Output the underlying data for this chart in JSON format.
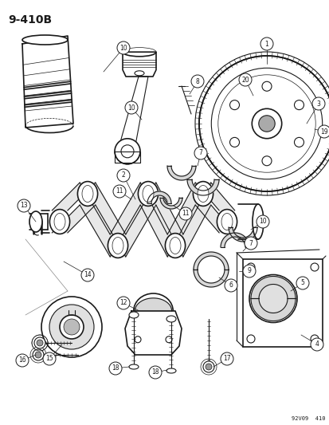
{
  "title": "9–410B",
  "bg_color": "#ffffff",
  "line_color": "#1a1a1a",
  "watermark": "92V09  410",
  "fig_width": 4.14,
  "fig_height": 5.33,
  "dpi": 100
}
